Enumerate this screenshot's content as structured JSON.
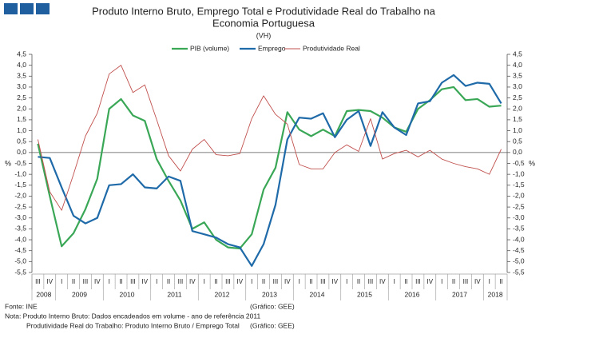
{
  "chart_data": {
    "type": "line",
    "title": [
      "Produto Interno Bruto, Emprego Total e Produtividade Real do Trabalho na",
      "Economia Portuguesa"
    ],
    "subtitle": "(VH)",
    "y_label": "%",
    "y2_label": "%",
    "categories": [
      "III",
      "IV",
      "I",
      "II",
      "III",
      "IV",
      "I",
      "II",
      "III",
      "IV",
      "I",
      "II",
      "III",
      "IV",
      "I",
      "II",
      "III",
      "IV",
      "I",
      "II",
      "III",
      "IV",
      "I",
      "II",
      "III",
      "IV",
      "I",
      "II",
      "III",
      "IV",
      "I",
      "II",
      "III",
      "IV",
      "I",
      "II",
      "III",
      "IV",
      "I",
      "II"
    ],
    "x_groups": [
      {
        "label": "2008",
        "count": 2
      },
      {
        "label": "2009",
        "count": 4
      },
      {
        "label": "2010",
        "count": 4
      },
      {
        "label": "2011",
        "count": 4
      },
      {
        "label": "2012",
        "count": 4
      },
      {
        "label": "2013",
        "count": 4
      },
      {
        "label": "2014",
        "count": 4
      },
      {
        "label": "2015",
        "count": 4
      },
      {
        "label": "2016",
        "count": 4
      },
      {
        "label": "2017",
        "count": 4
      },
      {
        "label": "2018",
        "count": 2
      }
    ],
    "series": [
      {
        "name": "PIB (volume)",
        "color": "#3aa757",
        "width": 2.2,
        "values": [
          0.4,
          -2.0,
          -4.3,
          -3.7,
          -2.6,
          -1.2,
          2.0,
          2.45,
          1.7,
          1.45,
          -0.3,
          -1.3,
          -2.2,
          -3.5,
          -3.2,
          -4.0,
          -4.35,
          -4.4,
          -3.75,
          -1.7,
          -0.7,
          1.85,
          1.05,
          0.75,
          1.05,
          0.75,
          1.9,
          1.95,
          1.9,
          1.6,
          1.15,
          0.95,
          2.0,
          2.4,
          2.9,
          3.0,
          2.4,
          2.45,
          2.1,
          2.15
        ]
      },
      {
        "name": "Emprego",
        "color": "#1f6aa8",
        "width": 2.2,
        "values": [
          -0.2,
          -0.25,
          -1.6,
          -2.9,
          -3.25,
          -3.0,
          -1.5,
          -1.45,
          -1.0,
          -1.6,
          -1.65,
          -1.1,
          -1.3,
          -3.6,
          -3.75,
          -3.9,
          -4.2,
          -4.35,
          -5.2,
          -4.2,
          -2.4,
          0.6,
          1.6,
          1.55,
          1.8,
          0.7,
          1.5,
          1.9,
          0.3,
          1.85,
          1.15,
          0.8,
          2.25,
          2.35,
          3.2,
          3.55,
          3.05,
          3.2,
          3.15,
          2.25
        ]
      },
      {
        "name": "Produtividade Real",
        "color": "#c0504d",
        "width": 0.9,
        "values": [
          0.6,
          -1.8,
          -2.65,
          -1.0,
          0.75,
          1.8,
          3.6,
          4.0,
          2.75,
          3.1,
          1.5,
          -0.15,
          -0.85,
          0.15,
          0.6,
          -0.1,
          -0.15,
          -0.05,
          1.55,
          2.6,
          1.75,
          1.3,
          -0.55,
          -0.75,
          -0.75,
          0.0,
          0.35,
          0.05,
          1.55,
          -0.3,
          -0.05,
          0.1,
          -0.2,
          0.1,
          -0.3,
          -0.5,
          -0.65,
          -0.75,
          -1.0,
          0.15
        ]
      }
    ],
    "ylim": [
      -5.5,
      4.5
    ],
    "yticks": [
      {
        "value": -5.5,
        "label": "-5,5"
      },
      {
        "value": -5,
        "label": "-5,0"
      },
      {
        "value": -4.5,
        "label": "-4,5"
      },
      {
        "value": -4,
        "label": "-4,0"
      },
      {
        "value": -3.5,
        "label": "-3,5"
      },
      {
        "value": -3,
        "label": "-3,0"
      },
      {
        "value": -2.5,
        "label": "-2,5"
      },
      {
        "value": -2,
        "label": "-2,0"
      },
      {
        "value": -1.5,
        "label": "-1,5"
      },
      {
        "value": -1,
        "label": "-1,0"
      },
      {
        "value": -0.5,
        "label": "-0,5"
      },
      {
        "value": 0,
        "label": "0,0"
      },
      {
        "value": 0.5,
        "label": "0,5"
      },
      {
        "value": 1,
        "label": "1,0"
      },
      {
        "value": 1.5,
        "label": "1,5"
      },
      {
        "value": 2,
        "label": "2,0"
      },
      {
        "value": 2.5,
        "label": "2,5"
      },
      {
        "value": 3,
        "label": "3,0"
      },
      {
        "value": 3.5,
        "label": "3,5"
      },
      {
        "value": 4,
        "label": "4,0"
      },
      {
        "value": 4.5,
        "label": "4,5"
      }
    ],
    "y2lim": [
      -5.5,
      4.5
    ],
    "y2ticks": [
      {
        "value": -5.5,
        "label": "-5,5"
      },
      {
        "value": -5,
        "label": "-5,0"
      },
      {
        "value": -4.5,
        "label": "-4,5"
      },
      {
        "value": -4,
        "label": "-4,0"
      },
      {
        "value": -3.5,
        "label": "-3,5"
      },
      {
        "value": -3,
        "label": "-3,0"
      },
      {
        "value": -2.5,
        "label": "-2,5"
      },
      {
        "value": -2,
        "label": "-2,0"
      },
      {
        "value": -1.5,
        "label": "-1,5"
      },
      {
        "value": -1,
        "label": "-1,0"
      },
      {
        "value": -0.5,
        "label": "-0,5"
      },
      {
        "value": 0,
        "label": "0,0"
      },
      {
        "value": 0.5,
        "label": "0,5"
      },
      {
        "value": 1,
        "label": "1,0"
      },
      {
        "value": 1.5,
        "label": "1,5"
      },
      {
        "value": 2,
        "label": "2,0"
      },
      {
        "value": 2.5,
        "label": "2,5"
      },
      {
        "value": 3,
        "label": "3,0"
      },
      {
        "value": 3.5,
        "label": "3,5"
      },
      {
        "value": 4,
        "label": "4,0"
      },
      {
        "value": 4.5,
        "label": "4,5"
      }
    ],
    "legend": "top",
    "grid": false,
    "footer": {
      "source": "Fonte: INE",
      "note": "Nota: Produto Interno Bruto: Dados encadeados em volume - ano de referência 2011",
      "note2": "Produtividade Real do Trabalho: Produto Interno Bruto / Emprego Total",
      "credit": "(Gráfico: GEE)"
    }
  }
}
